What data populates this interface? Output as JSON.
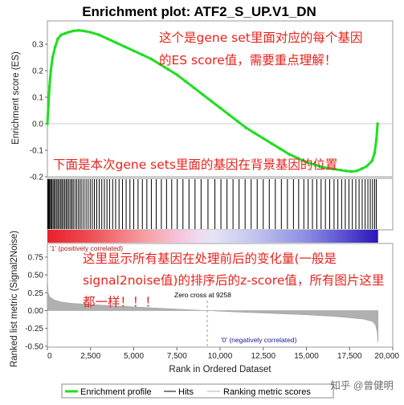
{
  "chart_data": {
    "type": "line",
    "title": "Enrichment plot: ATF2_S_UP.V1_DN",
    "xlabel": "Rank in Ordered Dataset",
    "xlim": [
      0,
      20000
    ],
    "x_ticks": [
      "0",
      "2,500",
      "5,000",
      "7,500",
      "10,000",
      "12,500",
      "15,000",
      "17,500",
      "20,000"
    ],
    "x_tick_values": [
      0,
      2500,
      5000,
      7500,
      10000,
      12500,
      15000,
      17500,
      20000
    ],
    "es_panel": {
      "ylabel": "Enrichment score (ES)",
      "ylim": [
        -0.2,
        0.35
      ],
      "y_ticks": [
        "0.3",
        "0.2",
        "0.1",
        "0.0",
        "-0.1",
        "-0.2"
      ],
      "y_tick_values": [
        0.3,
        0.2,
        0.1,
        0.0,
        -0.1,
        -0.2
      ],
      "series": [
        {
          "name": "Enrichment profile",
          "color": "#22dd22",
          "x": [
            0,
            60,
            120,
            200,
            300,
            450,
            600,
            800,
            1000,
            1200,
            1500,
            1800,
            2100,
            2500,
            3000,
            3500,
            4000,
            4500,
            5000,
            5500,
            6000,
            6500,
            7000,
            7500,
            8000,
            8500,
            9000,
            9500,
            10000,
            10500,
            11000,
            11500,
            12000,
            12500,
            13000,
            13500,
            14000,
            14500,
            15000,
            15500,
            16000,
            16500,
            17000,
            17300,
            17600,
            17900,
            18200,
            18500,
            18800,
            18950,
            19050,
            19120
          ],
          "y": [
            0.0,
            0.07,
            0.14,
            0.2,
            0.25,
            0.29,
            0.32,
            0.335,
            0.34,
            0.345,
            0.35,
            0.352,
            0.35,
            0.345,
            0.335,
            0.32,
            0.305,
            0.29,
            0.275,
            0.26,
            0.245,
            0.225,
            0.205,
            0.185,
            0.16,
            0.135,
            0.11,
            0.085,
            0.06,
            0.035,
            0.01,
            -0.015,
            -0.035,
            -0.055,
            -0.075,
            -0.095,
            -0.115,
            -0.13,
            -0.145,
            -0.155,
            -0.165,
            -0.17,
            -0.175,
            -0.178,
            -0.18,
            -0.178,
            -0.17,
            -0.16,
            -0.14,
            -0.11,
            -0.06,
            0.0
          ]
        }
      ]
    },
    "hits_panel": {
      "name": "Hits",
      "hit_ranks": [
        30,
        60,
        90,
        140,
        200,
        260,
        330,
        400,
        470,
        550,
        620,
        700,
        780,
        850,
        930,
        1010,
        1090,
        1170,
        1250,
        1340,
        1420,
        1500,
        1600,
        1700,
        1800,
        1900,
        2000,
        2120,
        2240,
        2360,
        2480,
        2600,
        2720,
        2860,
        3000,
        3150,
        3300,
        3450,
        3600,
        3780,
        3950,
        4150,
        4350,
        4560,
        4780,
        5000,
        5250,
        5500,
        5760,
        6020,
        6300,
        6600,
        6900,
        7200,
        7520,
        7850,
        8200,
        8550,
        8900,
        9300,
        9700,
        10050,
        10400,
        10750,
        11100,
        11450,
        11800,
        12150,
        12500,
        12850,
        13200,
        13550,
        13900,
        14250,
        14550,
        14850,
        15100,
        15350,
        15600,
        15850,
        16100,
        16350,
        16600,
        16820,
        17040,
        17250,
        17460,
        17660,
        17860,
        18050,
        18230,
        18400,
        18560,
        18700,
        18830,
        18950,
        19050
      ]
    },
    "ranking_panel": {
      "ylabel": "Ranked list metric (Signal2Noise)",
      "ylim": [
        -0.5,
        0.8
      ],
      "y_ticks": [
        "0.75",
        "0.50",
        "0.25",
        "0.00",
        "-0.25",
        "-0.50"
      ],
      "y_tick_values": [
        0.75,
        0.5,
        0.25,
        0.0,
        -0.25,
        -0.5
      ],
      "zero_cross_rank": 9258,
      "zero_cross_label": "Zero cross at 9258",
      "pos_label": "'1' (positively correlated)",
      "neg_label": "'0' (negatively correlated)",
      "metric": {
        "x": [
          0,
          50,
          150,
          400,
          800,
          1500,
          2500,
          4000,
          6000,
          8000,
          9258,
          11000,
          13000,
          15000,
          16500,
          17500,
          18300,
          18800,
          19000,
          19100,
          19150
        ],
        "y": [
          0.45,
          0.24,
          0.19,
          0.15,
          0.12,
          0.1,
          0.085,
          0.065,
          0.04,
          0.015,
          0.0,
          -0.02,
          -0.04,
          -0.06,
          -0.08,
          -0.1,
          -0.12,
          -0.15,
          -0.2,
          -0.3,
          -0.45
        ]
      },
      "series": [
        {
          "name": "Ranking metric scores",
          "color": "#b0b0b0"
        }
      ]
    },
    "legend": {
      "placement": "bottom",
      "items": [
        {
          "name": "Enrichment profile",
          "color": "#22dd22"
        },
        {
          "name": "Hits",
          "color": "#000000"
        },
        {
          "name": "Ranking metric scores",
          "color": "#b0b0b0"
        }
      ]
    },
    "annotations": {
      "es_note_line1": "这个是gene set里面对应的每个基因",
      "es_note_line2": "的ES score值，需要重点理解！",
      "hits_note": "下面是本次gene sets里面的基因在背景基因的位置",
      "rank_note_line1": "这里显示所有基因在处理前后的变化量(一般是",
      "rank_note_line2": "signal2noise值)的排序后的z-score值，所有图片这里",
      "rank_note_line3": "都一样！！！"
    },
    "watermark": "知乎 @曾健明"
  }
}
